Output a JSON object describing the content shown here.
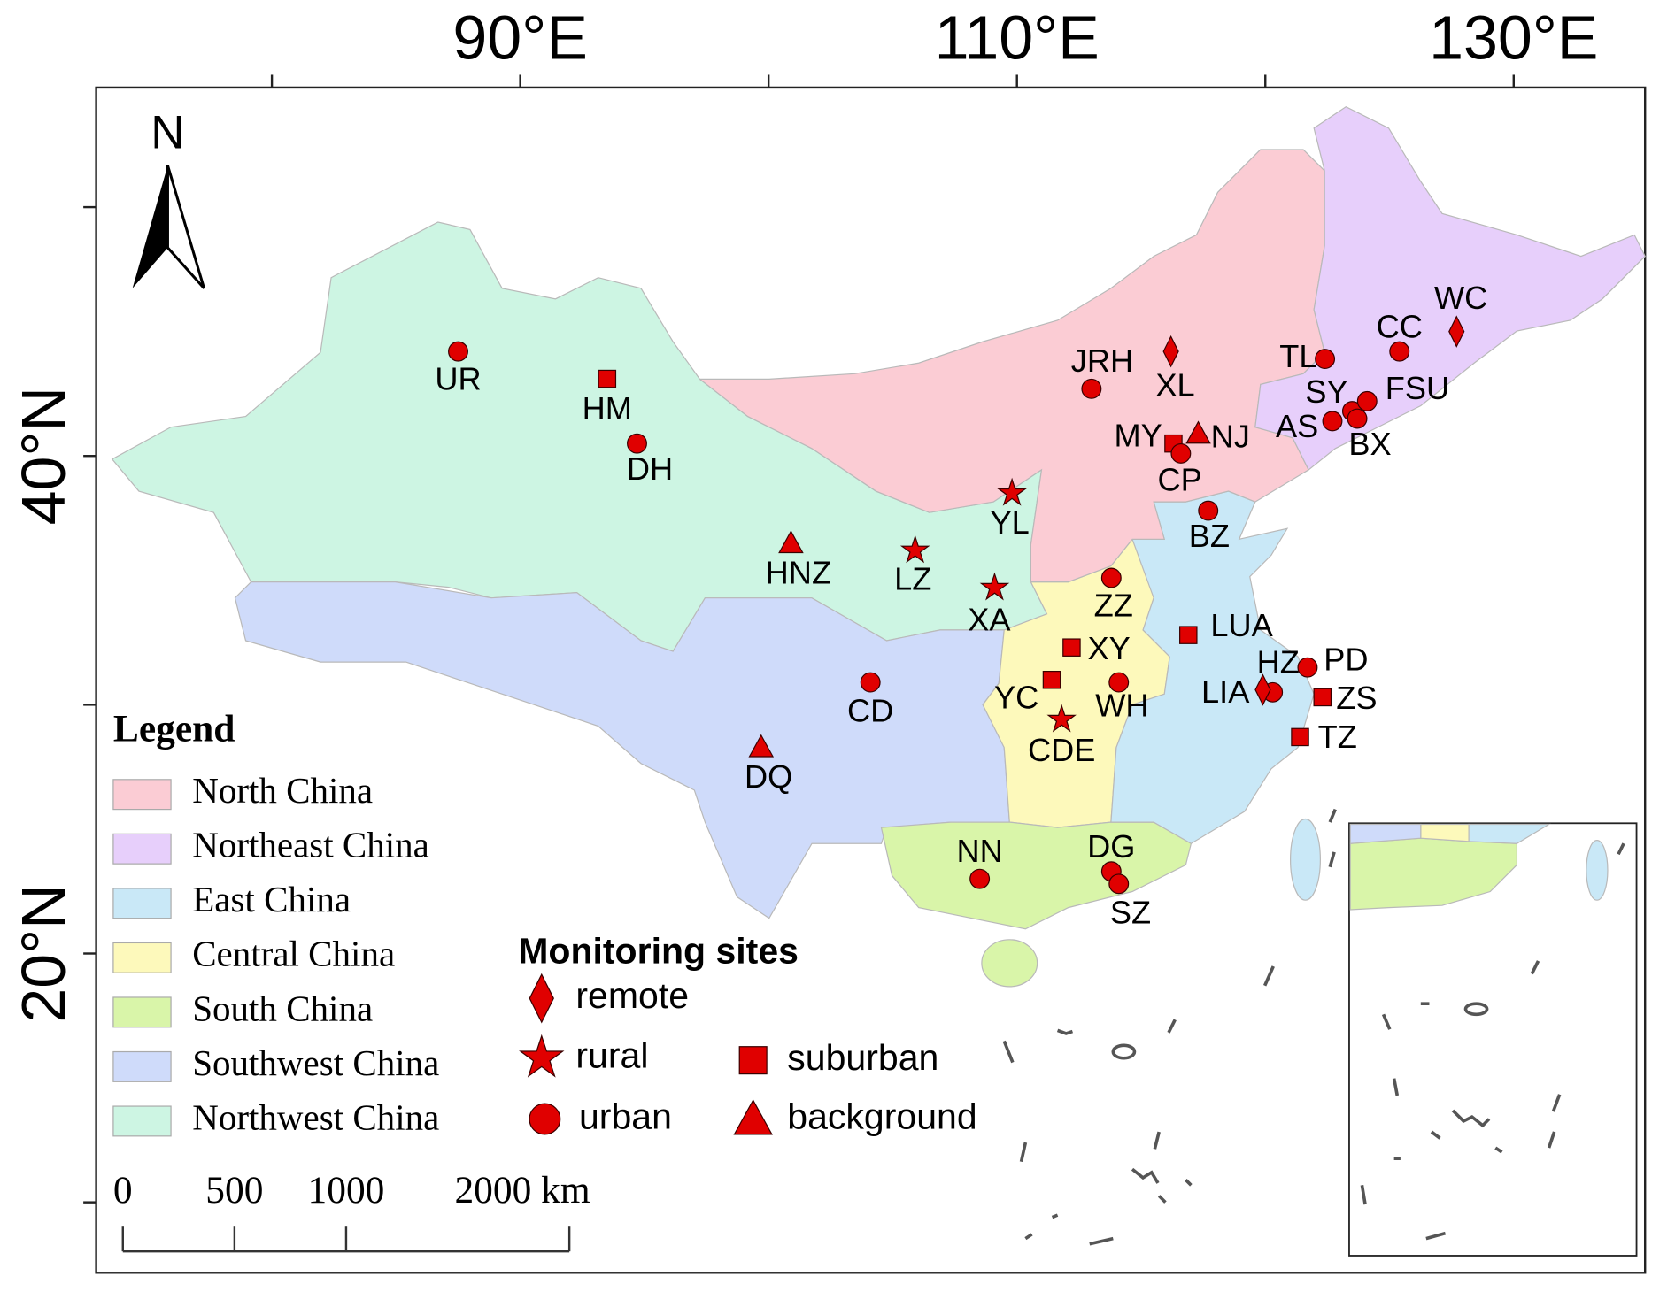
{
  "map": {
    "lon_ticks": [
      {
        "value": 90,
        "label": "90°E"
      },
      {
        "value": 110,
        "label": "110°E"
      },
      {
        "value": 130,
        "label": "130°E"
      }
    ],
    "lon_minor_ticks": [
      80,
      100,
      120
    ],
    "lat_ticks": [
      {
        "value": 40,
        "label": "40°N"
      },
      {
        "value": 20,
        "label": "20°N"
      }
    ],
    "lat_minor_ticks": [
      50,
      30,
      10
    ],
    "north_label": "N",
    "legend": {
      "title": "Legend",
      "regions": [
        {
          "name": "North China",
          "color": "#fbccd4"
        },
        {
          "name": "Northeast China",
          "color": "#e7cffb"
        },
        {
          "name": "East China",
          "color": "#c9e8f7"
        },
        {
          "name": "Central China",
          "color": "#fdf9bb"
        },
        {
          "name": "South China",
          "color": "#d9f5a9"
        },
        {
          "name": "Southwest China",
          "color": "#cfdbfa"
        },
        {
          "name": "Northwest China",
          "color": "#cdf5e3"
        }
      ]
    },
    "sites_legend": {
      "title": "Monitoring sites",
      "types": [
        "remote",
        "rural",
        "urban",
        "suburban",
        "background"
      ]
    },
    "marker_color": "#e00000",
    "scale_bar": {
      "ticks": [
        0,
        500,
        1000,
        {
          "value": 2000,
          "label": "2000 km"
        }
      ]
    },
    "sites": [
      {
        "name": "UR",
        "type": "urban",
        "lon": 87.5,
        "lat": 44.2
      },
      {
        "name": "HM",
        "type": "suburban",
        "lon": 93.5,
        "lat": 43.1
      },
      {
        "name": "DH",
        "type": "urban",
        "lon": 94.7,
        "lat": 40.5
      },
      {
        "name": "HNZ",
        "type": "background",
        "lon": 100.9,
        "lat": 36.5
      },
      {
        "name": "LZ",
        "type": "rural",
        "lon": 105.9,
        "lat": 36.2
      },
      {
        "name": "YL",
        "type": "rural",
        "lon": 109.8,
        "lat": 38.5
      },
      {
        "name": "XA",
        "type": "rural",
        "lon": 109.1,
        "lat": 34.7
      },
      {
        "name": "JRH",
        "type": "urban",
        "lon": 113.0,
        "lat": 42.7
      },
      {
        "name": "XL",
        "type": "remote",
        "lon": 116.2,
        "lat": 44.2
      },
      {
        "name": "MY",
        "type": "suburban",
        "lon": 116.3,
        "lat": 40.5
      },
      {
        "name": "NJ",
        "type": "background",
        "lon": 117.3,
        "lat": 40.9
      },
      {
        "name": "CP",
        "type": "urban",
        "lon": 116.6,
        "lat": 40.1
      },
      {
        "name": "BZ",
        "type": "urban",
        "lon": 117.7,
        "lat": 37.8
      },
      {
        "name": "ZZ",
        "type": "urban",
        "lon": 113.8,
        "lat": 35.1
      },
      {
        "name": "LUA",
        "type": "suburban",
        "lon": 116.9,
        "lat": 32.8
      },
      {
        "name": "XY",
        "type": "suburban",
        "lon": 112.2,
        "lat": 32.3
      },
      {
        "name": "YC",
        "type": "suburban",
        "lon": 111.4,
        "lat": 31.0
      },
      {
        "name": "WH",
        "type": "urban",
        "lon": 114.1,
        "lat": 30.9
      },
      {
        "name": "CDE",
        "type": "rural",
        "lon": 111.8,
        "lat": 29.4
      },
      {
        "name": "CD",
        "type": "urban",
        "lon": 104.1,
        "lat": 30.9
      },
      {
        "name": "DQ",
        "type": "background",
        "lon": 99.7,
        "lat": 28.3
      },
      {
        "name": "HZ",
        "type": "urban",
        "lon": 120.3,
        "lat": 30.5
      },
      {
        "name": "LIA",
        "type": "remote",
        "lon": 119.9,
        "lat": 30.6
      },
      {
        "name": "PD",
        "type": "urban",
        "lon": 121.7,
        "lat": 31.5
      },
      {
        "name": "ZS",
        "type": "suburban",
        "lon": 122.3,
        "lat": 30.3
      },
      {
        "name": "TZ",
        "type": "suburban",
        "lon": 121.4,
        "lat": 28.7
      },
      {
        "name": "TL",
        "type": "urban",
        "lon": 122.4,
        "lat": 43.9
      },
      {
        "name": "CC",
        "type": "urban",
        "lon": 125.4,
        "lat": 44.2
      },
      {
        "name": "WC",
        "type": "remote",
        "lon": 127.7,
        "lat": 45.0
      },
      {
        "name": "SY",
        "type": "urban",
        "lon": 123.5,
        "lat": 41.8
      },
      {
        "name": "FSU",
        "type": "urban",
        "lon": 124.1,
        "lat": 42.2
      },
      {
        "name": "AS",
        "type": "urban",
        "lon": 122.7,
        "lat": 41.4
      },
      {
        "name": "BX",
        "type": "urban",
        "lon": 123.7,
        "lat": 41.5
      },
      {
        "name": "NN",
        "type": "urban",
        "lon": 108.5,
        "lat": 23.0
      },
      {
        "name": "DG",
        "type": "urban",
        "lon": 113.8,
        "lat": 23.3
      },
      {
        "name": "SZ",
        "type": "urban",
        "lon": 114.1,
        "lat": 22.8
      }
    ]
  }
}
